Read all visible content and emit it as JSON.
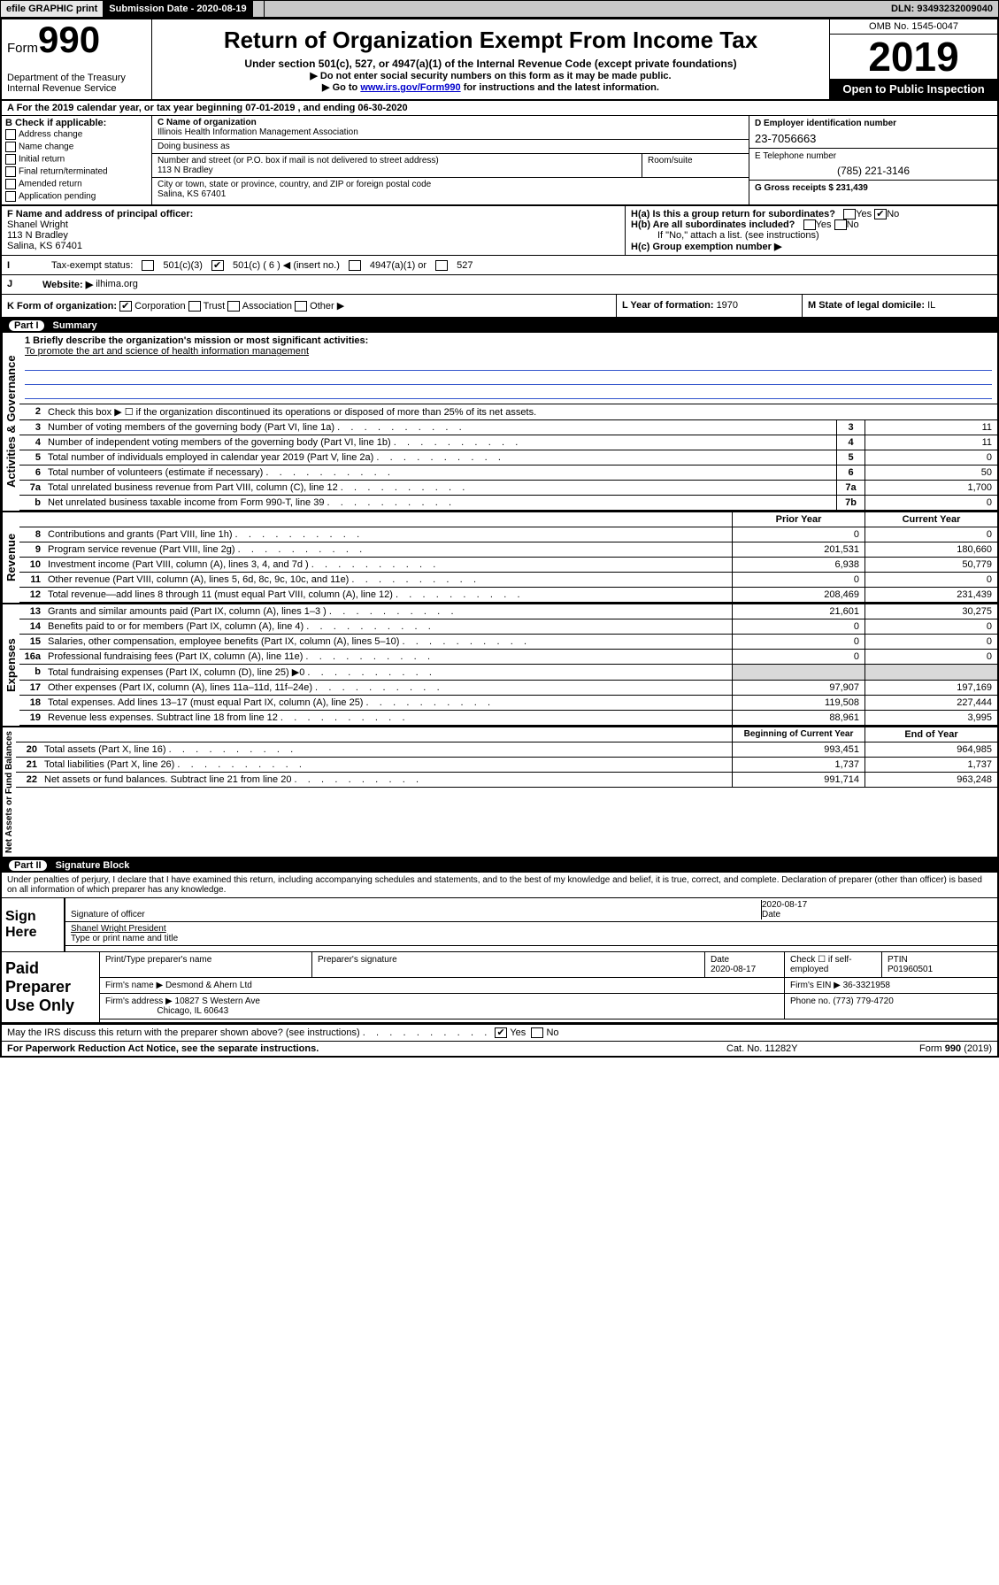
{
  "topbar": {
    "efile": "efile GRAPHIC print",
    "submission_label": "Submission Date - 2020-08-19",
    "dln": "DLN: 93493232009040"
  },
  "header": {
    "form_label": "Form",
    "form_no": "990",
    "dept": "Department of the Treasury\nInternal Revenue Service",
    "title": "Return of Organization Exempt From Income Tax",
    "sub1": "Under section 501(c), 527, or 4947(a)(1) of the Internal Revenue Code (except private foundations)",
    "sub2a": "▶ Do not enter social security numbers on this form as it may be made public.",
    "sub2b_pre": "▶ Go to ",
    "sub2b_link": "www.irs.gov/Form990",
    "sub2b_post": " for instructions and the latest information.",
    "omb": "OMB No. 1545-0047",
    "year": "2019",
    "open": "Open to Public Inspection"
  },
  "sectionA": {
    "text": "A  For the 2019 calendar year, or tax year beginning 07-01-2019     , and ending 06-30-2020"
  },
  "boxB": {
    "label": "B Check if applicable:",
    "items": [
      "Address change",
      "Name change",
      "Initial return",
      "Final return/terminated",
      "Amended return",
      "Application pending"
    ]
  },
  "boxC": {
    "name_label": "C Name of organization",
    "name": "Illinois Health Information Management Association",
    "dba_label": "Doing business as",
    "addr_label": "Number and street (or P.O. box if mail is not delivered to street address)",
    "room_label": "Room/suite",
    "addr": "113 N Bradley",
    "city_label": "City or town, state or province, country, and ZIP or foreign postal code",
    "city": "Salina, KS  67401"
  },
  "boxD": {
    "ein_label": "D Employer identification number",
    "ein": "23-7056663",
    "phone_label": "E Telephone number",
    "phone": "(785) 221-3146",
    "gross_label": "G Gross receipts $ ",
    "gross": "231,439"
  },
  "boxF": {
    "label": "F  Name and address of principal officer:",
    "name": "Shanel Wright",
    "addr1": "113 N Bradley",
    "addr2": "Salina, KS  67401"
  },
  "boxH": {
    "a_label": "H(a)  Is this a group return for subordinates?",
    "b_label": "H(b)  Are all subordinates included?",
    "b_note": "If \"No,\" attach a list. (see instructions)",
    "c_label": "H(c)  Group exemption number ▶",
    "yes": "Yes",
    "no": "No"
  },
  "taxexempt": {
    "label": "Tax-exempt status:",
    "c3": "501(c)(3)",
    "c": "501(c) ( 6 ) ◀ (insert no.)",
    "a1": "4947(a)(1) or",
    "527": "527"
  },
  "website": {
    "j": "J",
    "label": "Website: ▶",
    "val": "ilhima.org"
  },
  "korg": {
    "k": "K Form of organization:",
    "opts": [
      "Corporation",
      "Trust",
      "Association",
      "Other ▶"
    ],
    "l_label": "L Year of formation: ",
    "l_val": "1970",
    "m_label": "M State of legal domicile: ",
    "m_val": "IL"
  },
  "part1": {
    "label": "Part I",
    "title": "Summary"
  },
  "summary": {
    "mission_label": "1  Briefly describe the organization's mission or most significant activities:",
    "mission": "To promote the art and science of health information management",
    "line2": "Check this box ▶ ☐  if the organization discontinued its operations or disposed of more than 25% of its net assets.",
    "rows_ag": [
      {
        "n": "3",
        "t": "Number of voting members of the governing body (Part VI, line 1a)",
        "b": "3",
        "v": "11"
      },
      {
        "n": "4",
        "t": "Number of independent voting members of the governing body (Part VI, line 1b)",
        "b": "4",
        "v": "11"
      },
      {
        "n": "5",
        "t": "Total number of individuals employed in calendar year 2019 (Part V, line 2a)",
        "b": "5",
        "v": "0"
      },
      {
        "n": "6",
        "t": "Total number of volunteers (estimate if necessary)",
        "b": "6",
        "v": "50"
      },
      {
        "n": "7a",
        "t": "Total unrelated business revenue from Part VIII, column (C), line 12",
        "b": "7a",
        "v": "1,700"
      },
      {
        "n": " b",
        "t": "Net unrelated business taxable income from Form 990-T, line 39",
        "b": "7b",
        "v": "0"
      }
    ],
    "py_label": "Prior Year",
    "cy_label": "Current Year",
    "rows_rev": [
      {
        "n": "8",
        "t": "Contributions and grants (Part VIII, line 1h)",
        "py": "0",
        "cy": "0"
      },
      {
        "n": "9",
        "t": "Program service revenue (Part VIII, line 2g)",
        "py": "201,531",
        "cy": "180,660"
      },
      {
        "n": "10",
        "t": "Investment income (Part VIII, column (A), lines 3, 4, and 7d )",
        "py": "6,938",
        "cy": "50,779"
      },
      {
        "n": "11",
        "t": "Other revenue (Part VIII, column (A), lines 5, 6d, 8c, 9c, 10c, and 11e)",
        "py": "0",
        "cy": "0"
      },
      {
        "n": "12",
        "t": "Total revenue—add lines 8 through 11 (must equal Part VIII, column (A), line 12)",
        "py": "208,469",
        "cy": "231,439"
      }
    ],
    "rows_exp": [
      {
        "n": "13",
        "t": "Grants and similar amounts paid (Part IX, column (A), lines 1–3 )",
        "py": "21,601",
        "cy": "30,275"
      },
      {
        "n": "14",
        "t": "Benefits paid to or for members (Part IX, column (A), line 4)",
        "py": "0",
        "cy": "0"
      },
      {
        "n": "15",
        "t": "Salaries, other compensation, employee benefits (Part IX, column (A), lines 5–10)",
        "py": "0",
        "cy": "0"
      },
      {
        "n": "16a",
        "t": "Professional fundraising fees (Part IX, column (A), line 11e)",
        "py": "0",
        "cy": "0"
      },
      {
        "n": "  b",
        "t": "Total fundraising expenses (Part IX, column (D), line 25) ▶0",
        "py": "",
        "cy": "",
        "grey": true
      },
      {
        "n": "17",
        "t": "Other expenses (Part IX, column (A), lines 11a–11d, 11f–24e)",
        "py": "97,907",
        "cy": "197,169"
      },
      {
        "n": "18",
        "t": "Total expenses. Add lines 13–17 (must equal Part IX, column (A), line 25)",
        "py": "119,508",
        "cy": "227,444"
      },
      {
        "n": "19",
        "t": "Revenue less expenses. Subtract line 18 from line 12",
        "py": "88,961",
        "cy": "3,995"
      }
    ],
    "bcy_label": "Beginning of Current Year",
    "ecy_label": "End of Year",
    "rows_na": [
      {
        "n": "20",
        "t": "Total assets (Part X, line 16)",
        "py": "993,451",
        "cy": "964,985"
      },
      {
        "n": "21",
        "t": "Total liabilities (Part X, line 26)",
        "py": "1,737",
        "cy": "1,737"
      },
      {
        "n": "22",
        "t": "Net assets or fund balances. Subtract line 21 from line 20",
        "py": "991,714",
        "cy": "963,248"
      }
    ],
    "vlabels": {
      "ag": "Activities & Governance",
      "rev": "Revenue",
      "exp": "Expenses",
      "na": "Net Assets or Fund Balances"
    }
  },
  "part2": {
    "label": "Part II",
    "title": "Signature Block"
  },
  "penalty": "Under penalties of perjury, I declare that I have examined this return, including accompanying schedules and statements, and to the best of my knowledge and belief, it is true, correct, and complete. Declaration of preparer (other than officer) is based on all information of which preparer has any knowledge.",
  "sign": {
    "here": "Sign Here",
    "sig_label": "Signature of officer",
    "date": "2020-08-17",
    "date_label": "Date",
    "name": "Shanel Wright  President",
    "name_label": "Type or print name and title"
  },
  "preparer": {
    "label": "Paid Preparer Use Only",
    "h1": "Print/Type preparer's name",
    "h2": "Preparer's signature",
    "h3": "Date",
    "h3v": "2020-08-17",
    "h4": "Check ☐ if self-employed",
    "h5": "PTIN",
    "h5v": "P01960501",
    "firm_label": "Firm's name      ▶",
    "firm": "Desmond & Ahern Ltd",
    "ein_label": "Firm's EIN ▶",
    "ein": "36-3321958",
    "addr_label": "Firm's address  ▶",
    "addr1": "10827 S Western Ave",
    "addr2": "Chicago, IL  60643",
    "phone_label": "Phone no. ",
    "phone": "(773) 779-4720"
  },
  "discuss": {
    "text": "May the IRS discuss this return with the preparer shown above? (see instructions)",
    "yes": "Yes",
    "no": "No"
  },
  "footer": {
    "f1": "For Paperwork Reduction Act Notice, see the separate instructions.",
    "f2": "Cat. No. 11282Y",
    "f3": "Form 990 (2019)"
  }
}
